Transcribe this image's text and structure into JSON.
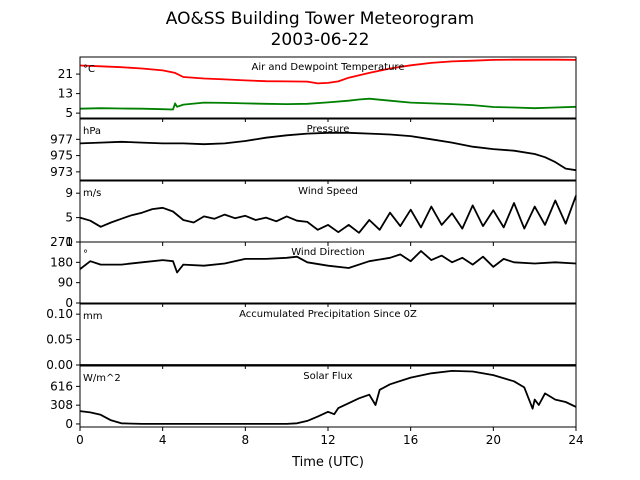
{
  "figure": {
    "title_line1": "AO&SS Building Tower Meteorogram",
    "title_line2": "2003-06-22",
    "xlabel": "Time (UTC)"
  },
  "chart_data": [
    {
      "type": "line",
      "title": "Air and Dewpoint Temperature",
      "unit_label": "°C",
      "xlim": [
        0,
        24
      ],
      "ylim": [
        3,
        28
      ],
      "yticks": [
        5,
        13,
        21
      ],
      "x_ticks": [
        0,
        4,
        8,
        12,
        16,
        20,
        24
      ],
      "series": [
        {
          "color": "#ff0000",
          "x": [
            0,
            1,
            2,
            3,
            4,
            4.6,
            5,
            6,
            7,
            8,
            9,
            10,
            11,
            11.5,
            12,
            12.5,
            13,
            14,
            15,
            16,
            17,
            18,
            19,
            20,
            21,
            22,
            23,
            24
          ],
          "values": [
            24.5,
            24.2,
            23.8,
            23.3,
            22.5,
            21.5,
            19.8,
            19.2,
            18.8,
            18.4,
            18.1,
            18.0,
            17.9,
            17.2,
            17.4,
            18.0,
            19.5,
            21.5,
            23.3,
            24.6,
            25.6,
            26.2,
            26.5,
            26.8,
            26.9,
            26.9,
            26.9,
            26.8
          ]
        },
        {
          "color": "#008000",
          "x": [
            0,
            1,
            2,
            3,
            4,
            4.5,
            4.6,
            4.7,
            5,
            6,
            7,
            8,
            9,
            10,
            11,
            12,
            13,
            13.5,
            14,
            15,
            16,
            17,
            18,
            19,
            20,
            21,
            22,
            23,
            24
          ],
          "values": [
            6.8,
            7.0,
            6.9,
            6.8,
            6.6,
            6.5,
            9.0,
            7.6,
            8.5,
            9.3,
            9.2,
            9.0,
            8.8,
            8.7,
            8.8,
            9.4,
            10.1,
            10.6,
            10.9,
            10.1,
            9.3,
            9.0,
            8.7,
            8.3,
            7.5,
            7.3,
            7.0,
            7.3,
            7.6
          ]
        }
      ]
    },
    {
      "type": "line",
      "title": "Pressure",
      "unit_label": "hPa",
      "xlim": [
        0,
        24
      ],
      "ylim": [
        972,
        979.5
      ],
      "yticks": [
        973,
        975,
        977
      ],
      "x_ticks": [
        0,
        4,
        8,
        12,
        16,
        20,
        24
      ],
      "series": [
        {
          "color": "#000000",
          "x": [
            0,
            1,
            2,
            3,
            4,
            5,
            6,
            7,
            8,
            9,
            10,
            11,
            12,
            13,
            14,
            15,
            16,
            17,
            18,
            19,
            20,
            21,
            22,
            22.5,
            23,
            23.5,
            24
          ],
          "values": [
            976.5,
            976.6,
            976.7,
            976.6,
            976.5,
            976.5,
            976.4,
            976.5,
            976.8,
            977.2,
            977.5,
            977.7,
            977.8,
            977.8,
            977.7,
            977.6,
            977.4,
            977.0,
            976.6,
            976.1,
            975.8,
            975.6,
            975.2,
            974.8,
            974.2,
            973.4,
            973.2
          ]
        }
      ]
    },
    {
      "type": "line",
      "title": "Wind Speed",
      "unit_label": "m/s",
      "xlim": [
        0,
        24
      ],
      "ylim": [
        1,
        11
      ],
      "yticks": [
        1,
        5,
        9
      ],
      "x_ticks": [
        0,
        4,
        8,
        12,
        16,
        20,
        24
      ],
      "series": [
        {
          "color": "#000000",
          "x": [
            0,
            0.5,
            1,
            1.5,
            2,
            2.5,
            3,
            3.5,
            4,
            4.5,
            5,
            5.5,
            6,
            6.5,
            7,
            7.5,
            8,
            8.5,
            9,
            9.5,
            10,
            10.5,
            11,
            11.5,
            12,
            12.5,
            13,
            13.5,
            14,
            14.5,
            15,
            15.5,
            16,
            16.5,
            17,
            17.5,
            18,
            18.5,
            19,
            19.5,
            20,
            20.5,
            21,
            21.5,
            22,
            22.5,
            23,
            23.5,
            24
          ],
          "values": [
            5.0,
            4.5,
            3.5,
            4.2,
            4.8,
            5.4,
            5.8,
            6.4,
            6.6,
            6.0,
            4.6,
            4.2,
            5.2,
            4.8,
            5.5,
            4.9,
            5.3,
            4.6,
            5.0,
            4.4,
            5.2,
            4.5,
            4.3,
            3.0,
            3.8,
            2.6,
            3.8,
            2.5,
            4.6,
            3.0,
            5.8,
            3.6,
            6.3,
            3.4,
            6.8,
            3.8,
            5.7,
            3.2,
            7.0,
            3.6,
            6.2,
            3.4,
            7.4,
            3.2,
            6.8,
            3.8,
            7.8,
            4.0,
            8.6
          ]
        }
      ]
    },
    {
      "type": "line",
      "title": "Wind Direction",
      "unit_label": "°",
      "xlim": [
        0,
        24
      ],
      "ylim": [
        0,
        270
      ],
      "yticks": [
        0,
        90,
        180,
        270
      ],
      "x_ticks": [
        0,
        4,
        8,
        12,
        16,
        20,
        24
      ],
      "series": [
        {
          "color": "#000000",
          "x": [
            0,
            0.5,
            1,
            2,
            3,
            4,
            4.5,
            4.7,
            5,
            6,
            7,
            8,
            9,
            10,
            10.5,
            11,
            12,
            13,
            14,
            15,
            15.5,
            16,
            16.5,
            17,
            17.5,
            18,
            18.5,
            19,
            19.5,
            20,
            20.5,
            21,
            22,
            23,
            24
          ],
          "values": [
            150,
            185,
            170,
            170,
            180,
            190,
            185,
            135,
            170,
            165,
            175,
            195,
            195,
            200,
            205,
            180,
            165,
            155,
            185,
            200,
            215,
            185,
            230,
            190,
            210,
            180,
            200,
            170,
            205,
            160,
            195,
            180,
            175,
            180,
            175
          ]
        }
      ]
    },
    {
      "type": "line",
      "title": "Accumulated Precipitation Since 0Z",
      "unit_label": "mm",
      "xlim": [
        0,
        24
      ],
      "ylim": [
        0,
        0.12
      ],
      "ytick_labels": [
        "0.00",
        "0.05",
        "0.10"
      ],
      "yticks": [
        0,
        0.05,
        0.1
      ],
      "x_ticks": [
        0,
        4,
        8,
        12,
        16,
        20,
        24
      ],
      "series": [
        {
          "color": "#000000",
          "x": [
            0,
            24
          ],
          "values": [
            0,
            0
          ]
        }
      ]
    },
    {
      "type": "line",
      "title": "Solar Flux",
      "unit_label": "W/m^2",
      "xlim": [
        0,
        24
      ],
      "ylim": [
        -50,
        950
      ],
      "yticks": [
        0,
        308,
        616
      ],
      "x_ticks": [
        0,
        4,
        8,
        12,
        16,
        20,
        24
      ],
      "x_tick_labels": [
        "0",
        "4",
        "8",
        "12",
        "16",
        "20",
        "24"
      ],
      "series": [
        {
          "color": "#000000",
          "x": [
            0,
            0.5,
            1,
            1.5,
            2,
            3,
            4,
            5,
            6,
            7,
            8,
            9,
            10,
            10.5,
            11,
            11.5,
            12,
            12.3,
            12.5,
            13,
            13.5,
            14,
            14.3,
            14.5,
            15,
            16,
            17,
            18,
            19,
            20,
            21,
            21.5,
            21.9,
            22,
            22.2,
            22.5,
            23,
            23.5,
            24
          ],
          "values": [
            210,
            190,
            150,
            60,
            10,
            0,
            0,
            0,
            0,
            0,
            0,
            0,
            0,
            10,
            50,
            120,
            200,
            160,
            260,
            340,
            420,
            480,
            310,
            560,
            650,
            760,
            830,
            870,
            860,
            800,
            700,
            600,
            250,
            400,
            310,
            500,
            400,
            360,
            280
          ]
        }
      ]
    }
  ]
}
